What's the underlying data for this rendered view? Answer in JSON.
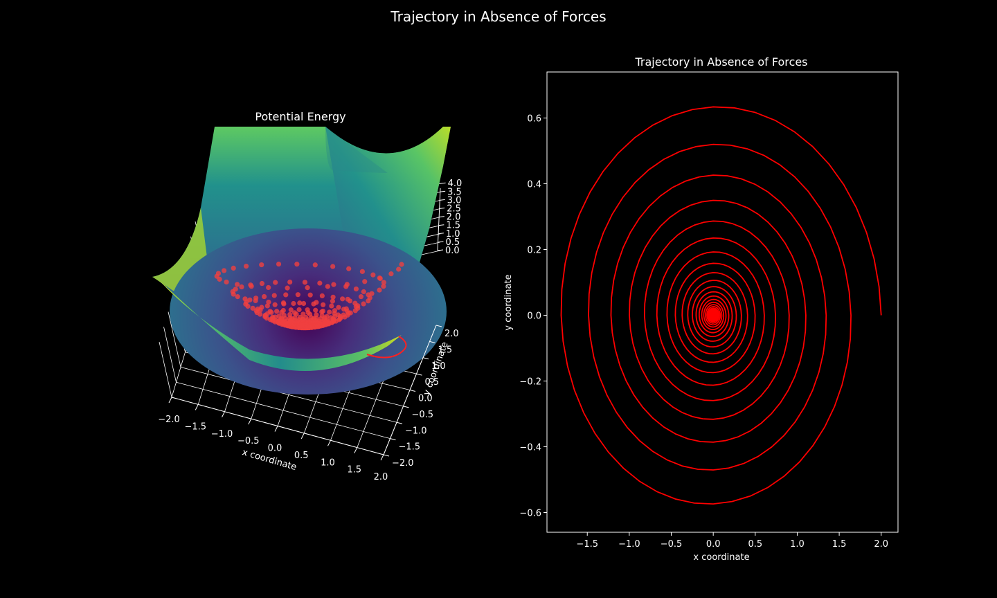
{
  "suptitle": "Trajectory in Absence of Forces",
  "colors": {
    "background": "#000000",
    "foreground": "#ffffff",
    "trajectory": "#ff0000",
    "surface_colormap": "viridis"
  },
  "chart_data": [
    {
      "type": "surface3d",
      "title": "Potential Energy",
      "xlabel": "x coordinate",
      "ylabel": "y coordinate",
      "zlabel": "",
      "xlim": [
        -2.0,
        2.0
      ],
      "ylim": [
        -2.0,
        2.0
      ],
      "zlim": [
        0.0,
        4.0
      ],
      "xticks": [
        "−2.0",
        "−1.5",
        "−1.0",
        "−0.5",
        "0.0",
        "0.5",
        "1.0",
        "1.5",
        "2.0"
      ],
      "yticks": [
        "−2.0",
        "−1.5",
        "−1.0",
        "−0.5",
        "0.0",
        "0.5",
        "1.0",
        "1.5",
        "2.0"
      ],
      "zticks": [
        "0.0",
        "0.5",
        "1.0",
        "1.5",
        "2.0",
        "2.5",
        "3.0",
        "3.5",
        "4.0"
      ],
      "surface": "potential energy bowl, viridis colormap",
      "overlay": "red scatter points of the spiral trajectory on the surface",
      "grid": true
    },
    {
      "type": "line",
      "title": "Trajectory in Absence of Forces",
      "xlabel": "x coordinate",
      "ylabel": "y coordinate",
      "xlim": [
        -1.98,
        2.2
      ],
      "ylim": [
        -0.66,
        0.74
      ],
      "xticks": [
        "−1.5",
        "−1.0",
        "−0.5",
        "0.0",
        "0.5",
        "1.0",
        "1.5",
        "2.0"
      ],
      "yticks": [
        "−0.6",
        "−0.4",
        "−0.2",
        "0.0",
        "0.2",
        "0.4",
        "0.6"
      ],
      "grid": false,
      "series": [
        {
          "color": "#ff0000",
          "form": "damped elliptical spiral",
          "start": [
            2.0,
            0.0
          ],
          "end": [
            0.0,
            0.0
          ],
          "x_amplitude": 2.0,
          "y_amplitude_ratio": 0.333,
          "decay_per_turn": 0.82,
          "turns": 30
        }
      ]
    }
  ]
}
